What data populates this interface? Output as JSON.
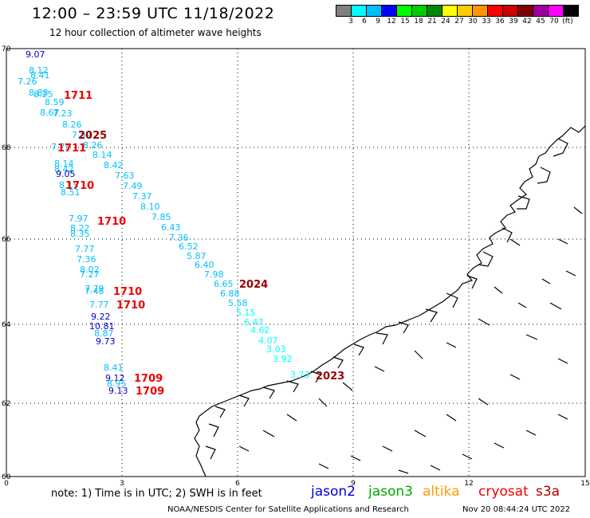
{
  "header": {
    "title": "12:00 – 23:59 UTC 11/18/2022",
    "subtitle": "12 hour collection of altimeter wave heights"
  },
  "legend": {
    "labels": [
      "3",
      "6",
      "9",
      "12",
      "15",
      "18",
      "21",
      "24",
      "27",
      "30",
      "33",
      "36",
      "39",
      "42",
      "45",
      "70"
    ],
    "unit": "(ft)",
    "colors": [
      "#808080",
      "#00ffff",
      "#00bfff",
      "#0000ff",
      "#00ff00",
      "#00cc00",
      "#008800",
      "#ffff00",
      "#ffcc00",
      "#ff9900",
      "#ff0000",
      "#cc0000",
      "#800000",
      "#a000a0",
      "#ff00ff",
      "#000000"
    ]
  },
  "axes": {
    "x_ticks": [
      "0",
      "3",
      "6",
      "9",
      "12",
      "15"
    ],
    "y_ticks": [
      "70",
      "68",
      "66",
      "64",
      "62",
      "60"
    ]
  },
  "readings": [
    {
      "text": "9.07",
      "color": "#0000cc"
    },
    {
      "text": "8.12",
      "color": "#00bfff"
    },
    {
      "text": "8.41",
      "color": "#00bfff"
    },
    {
      "text": "7.26",
      "color": "#00bfff"
    },
    {
      "text": "8.88",
      "color": "#00bfff"
    },
    {
      "text": "8.25",
      "color": "#00bfff"
    },
    {
      "text": "8.59",
      "color": "#00bfff"
    },
    {
      "text": "8.67",
      "color": "#00bfff"
    },
    {
      "text": "7.23",
      "color": "#00bfff"
    },
    {
      "text": "8.26",
      "color": "#00bfff"
    },
    {
      "text": "7.59",
      "color": "#00bfff"
    },
    {
      "text": "8.26",
      "color": "#00bfff"
    },
    {
      "text": "7.75",
      "color": "#00bfff"
    },
    {
      "text": "8.14",
      "color": "#00bfff"
    },
    {
      "text": "8.42",
      "color": "#00bfff"
    },
    {
      "text": "8.14",
      "color": "#00bfff"
    },
    {
      "text": "8.42",
      "color": "#00bfff"
    },
    {
      "text": "9.05",
      "color": "#0000cc"
    },
    {
      "text": "7.63",
      "color": "#00bfff"
    },
    {
      "text": "8.15",
      "color": "#00bfff"
    },
    {
      "text": "7.49",
      "color": "#00bfff"
    },
    {
      "text": "8.51",
      "color": "#00bfff"
    },
    {
      "text": "7.37",
      "color": "#00bfff"
    },
    {
      "text": "8.10",
      "color": "#00bfff"
    },
    {
      "text": "7.97",
      "color": "#00bfff"
    },
    {
      "text": "7.85",
      "color": "#00bfff"
    },
    {
      "text": "8.22",
      "color": "#00bfff"
    },
    {
      "text": "8.35",
      "color": "#00bfff"
    },
    {
      "text": "6.43",
      "color": "#00bfff"
    },
    {
      "text": "7.36",
      "color": "#00bfff"
    },
    {
      "text": "6.52",
      "color": "#00bfff"
    },
    {
      "text": "7.77",
      "color": "#00bfff"
    },
    {
      "text": "5.87",
      "color": "#00bfff"
    },
    {
      "text": "7.36",
      "color": "#00bfff"
    },
    {
      "text": "6.40",
      "color": "#00bfff"
    },
    {
      "text": "8.02",
      "color": "#00bfff"
    },
    {
      "text": "7.27",
      "color": "#00bfff"
    },
    {
      "text": "7.98",
      "color": "#00bfff"
    },
    {
      "text": "6.65",
      "color": "#00bfff"
    },
    {
      "text": "6.88",
      "color": "#00bfff"
    },
    {
      "text": "7.79",
      "color": "#00bfff"
    },
    {
      "text": "7.48",
      "color": "#00bfff"
    },
    {
      "text": "5.58",
      "color": "#00bfff"
    },
    {
      "text": "7.77",
      "color": "#00bfff"
    },
    {
      "text": "5.15",
      "color": "#00ffff"
    },
    {
      "text": "9.22",
      "color": "#0000cc"
    },
    {
      "text": "6.47",
      "color": "#00ffff"
    },
    {
      "text": "10.81",
      "color": "#0000cc"
    },
    {
      "text": "4.62",
      "color": "#00ffff"
    },
    {
      "text": "8.87",
      "color": "#00bfff"
    },
    {
      "text": "9.73",
      "color": "#0000cc"
    },
    {
      "text": "4.07",
      "color": "#00ffff"
    },
    {
      "text": "3.03",
      "color": "#00ffff"
    },
    {
      "text": "3.92",
      "color": "#00ffff"
    },
    {
      "text": "8.41",
      "color": "#00bfff"
    },
    {
      "text": "3.73",
      "color": "#00ffff"
    },
    {
      "text": "9.12",
      "color": "#0000cc"
    },
    {
      "text": "8.95",
      "color": "#00bfff"
    },
    {
      "text": "9.13",
      "color": "#0000cc"
    }
  ],
  "times": [
    {
      "text": "1711",
      "color": "#ee0000"
    },
    {
      "text": "2025",
      "color": "#990000"
    },
    {
      "text": "1711",
      "color": "#ee0000"
    },
    {
      "text": "1710",
      "color": "#ee0000"
    },
    {
      "text": "1710",
      "color": "#ee0000"
    },
    {
      "text": "2024",
      "color": "#990000"
    },
    {
      "text": "1710",
      "color": "#ee0000"
    },
    {
      "text": "1710",
      "color": "#ee0000"
    },
    {
      "text": "2023",
      "color": "#990000"
    },
    {
      "text": "1709",
      "color": "#ee0000"
    },
    {
      "text": "1709",
      "color": "#ee0000"
    }
  ],
  "footer": {
    "note": "note:  1) Time is in UTC;  2) SWH is in feet",
    "satellites": [
      {
        "name": "jason2",
        "color": "#0000dd"
      },
      {
        "name": "jason3",
        "color": "#00aa00"
      },
      {
        "name": "altika",
        "color": "#ff9900"
      },
      {
        "name": "cryosat",
        "color": "#ee0000"
      },
      {
        "name": "s3a",
        "color": "#aa0000"
      }
    ],
    "credit": "NOAA/NESDIS Center for Satellite Applications and Research",
    "timestamp": "Nov 20 08:44:24 UTC 2022"
  }
}
